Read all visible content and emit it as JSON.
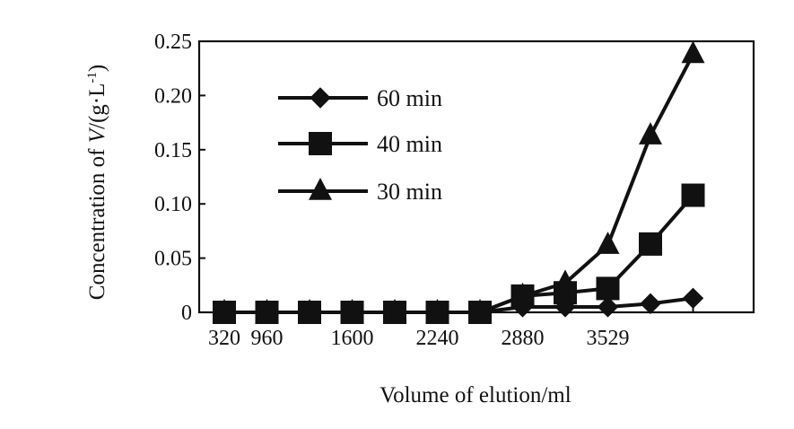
{
  "chart_data": {
    "type": "line",
    "xlabel": "Volume of elution/ml",
    "ylabel_prefix": "Concentration of ",
    "ylabel_var": "V",
    "ylabel_suffix": "/(g·L",
    "ylabel_exp": "-1",
    "ylabel_close": ")",
    "ylim": [
      0,
      0.25
    ],
    "yticks": [
      0,
      0.05,
      0.1,
      0.15,
      0.2,
      0.25
    ],
    "ytick_labels": [
      "0",
      "0.05",
      "0.10",
      "0.15",
      "0.20",
      "0.25"
    ],
    "x_tick_labels": [
      "320",
      "960",
      "1600",
      "2240",
      "2880",
      "3529"
    ],
    "x_label_slots": [
      0,
      1,
      3,
      5,
      7,
      9
    ],
    "x_slot_count": 12,
    "legend_position": "upper-left",
    "grid": false,
    "series": [
      {
        "name": "60 min",
        "marker": "diamond",
        "values": [
          0,
          0,
          0,
          0,
          0,
          0,
          0,
          0.005,
          0.005,
          0.005,
          0.008,
          0.013
        ]
      },
      {
        "name": "40 min",
        "marker": "square",
        "values": [
          0,
          0,
          0,
          0,
          0,
          0,
          0,
          0.015,
          0.018,
          0.022,
          0.063,
          0.108
        ]
      },
      {
        "name": "30 min",
        "marker": "triangle",
        "values": [
          0,
          0,
          0,
          0,
          0,
          0,
          0,
          0.015,
          0.027,
          0.062,
          0.163,
          0.238
        ]
      }
    ]
  }
}
